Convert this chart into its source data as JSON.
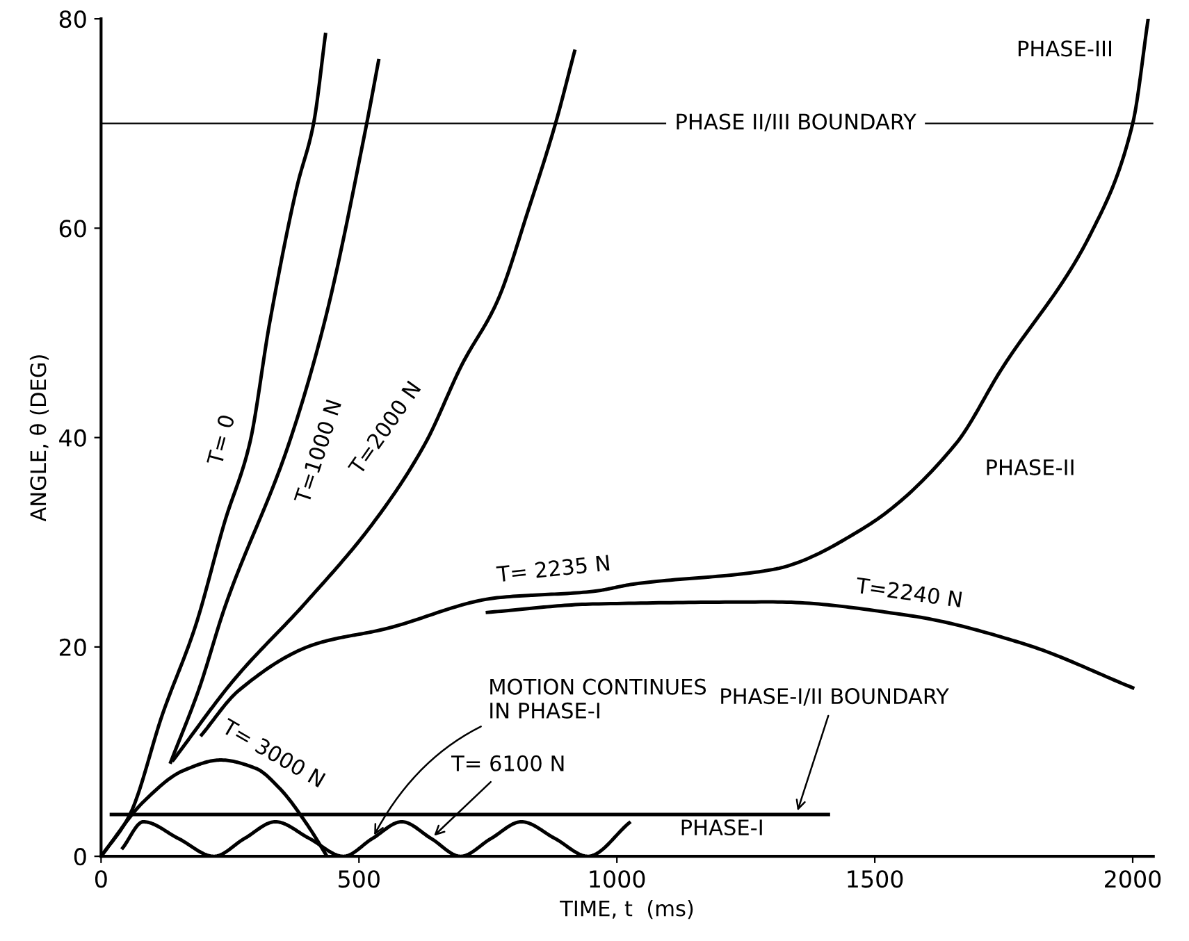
{
  "chart_data": {
    "type": "line",
    "xlabel": "TIME, t  (ms)",
    "ylabel": "ANGLE, θ (DEG)",
    "xlim": [
      0,
      2040
    ],
    "ylim": [
      0,
      80
    ],
    "xticks": [
      0,
      500,
      1000,
      1500,
      2000
    ],
    "yticks": [
      0,
      20,
      40,
      60,
      80
    ],
    "grid": false,
    "legend": false,
    "marker": "none",
    "line_style": "solid",
    "series": [
      {
        "name": "T= 0",
        "color": "#000000",
        "x": [
          0,
          55,
          120,
          183,
          240,
          288,
          327,
          380,
          412,
          435
        ],
        "values": [
          0,
          3.9,
          13.7,
          22,
          32,
          39.4,
          51,
          64,
          70,
          78.5
        ]
      },
      {
        "name": "T=1000 N",
        "color": "#000000",
        "x": [
          135,
          190,
          240,
          364,
          433,
          515,
          538
        ],
        "values": [
          9,
          16,
          23.8,
          39.4,
          51,
          70,
          76
        ]
      },
      {
        "name": "T=2000 N",
        "color": "#000000",
        "x": [
          140,
          260,
          398,
          530,
          628,
          700,
          768,
          830,
          881,
          918
        ],
        "values": [
          9.2,
          17,
          24.3,
          32,
          39.4,
          47,
          53,
          62,
          70,
          76.9
        ]
      },
      {
        "name": "T= 2235 N",
        "color": "#000000",
        "x": [
          195,
          266,
          417,
          549,
          768,
          953,
          1032,
          1303,
          1480,
          1657,
          1744,
          1921,
          2000,
          2030
        ],
        "values": [
          11.6,
          15.8,
          20.3,
          21.7,
          24.7,
          25.3,
          26,
          27.4,
          31.4,
          39.4,
          46.4,
          59.7,
          70,
          80
        ]
      },
      {
        "name": "T=2240 N",
        "color": "#000000",
        "x": [
          749,
          953,
          1303,
          1567,
          1789,
          2000
        ],
        "values": [
          23.3,
          24.1,
          24.3,
          23,
          20.3,
          16.1
        ]
      },
      {
        "name": "T= 3000 N",
        "color": "#000000",
        "x": [
          0,
          82,
          160,
          232,
          300,
          346,
          400,
          438
        ],
        "values": [
          0,
          5.2,
          8.2,
          9.2,
          8.4,
          6.5,
          3,
          0
        ]
      },
      {
        "name": "T= 6100 N",
        "color": "#000000",
        "x": [
          42,
          82,
          150,
          219,
          278,
          338,
          404,
          470,
          526,
          583,
          640,
          697,
          756,
          815,
          880,
          944,
          1024
        ],
        "values": [
          0.8,
          3.3,
          1.7,
          0,
          1.7,
          3.3,
          1.7,
          0,
          1.7,
          3.3,
          1.7,
          0,
          1.7,
          3.3,
          1.7,
          0,
          3.2
        ]
      },
      {
        "color": "#000000",
        "x": [
          20,
          1410
        ],
        "values": [
          4,
          4
        ]
      }
    ],
    "ref_lines": [
      {
        "axis": "y",
        "value": 70,
        "label": "PHASE II/III BOUNDARY",
        "color": "#000000"
      }
    ],
    "annotations": [
      {
        "text": "MOTION CONTINUES\nIN PHASE-I",
        "x": 526,
        "y": 1.7
      },
      {
        "text": "PHASE-I/II BOUNDARY",
        "x": 1348,
        "y": 4
      },
      "PHASE-I",
      "PHASE-II",
      "PHASE-III"
    ]
  }
}
